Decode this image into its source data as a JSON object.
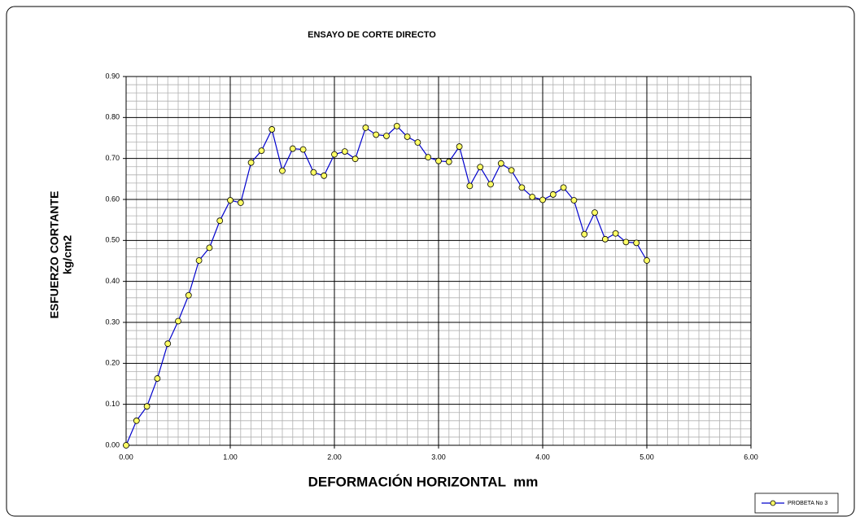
{
  "chart_data": {
    "type": "line",
    "title": "ENSAYO DE CORTE DIRECTO",
    "xlabel": "DEFORMACIÓN HORIZONTAL  mm",
    "ylabel": [
      "ESFUERZO CORTANTE",
      "kg/cm2"
    ],
    "x": [
      0,
      0.1,
      0.2,
      0.3,
      0.4,
      0.5,
      0.6,
      0.7,
      0.8,
      0.9,
      1.0,
      1.1,
      1.2,
      1.3,
      1.4,
      1.5,
      1.6,
      1.7,
      1.8,
      1.9,
      2.0,
      2.1,
      2.2,
      2.3,
      2.4,
      2.5,
      2.6,
      2.7,
      2.8,
      2.9,
      3.0,
      3.1,
      3.2,
      3.3,
      3.4,
      3.5,
      3.6,
      3.7,
      3.8,
      3.9,
      4.0,
      4.1,
      4.2,
      4.3,
      4.4,
      4.5,
      4.6,
      4.7,
      4.8,
      4.9,
      5.0
    ],
    "series": [
      {
        "name": "PROBETA No 3",
        "color": "#0000cc",
        "marker_color": "#ffff66",
        "values": [
          0,
          0.06,
          0.095,
          0.163,
          0.248,
          0.303,
          0.366,
          0.451,
          0.482,
          0.548,
          0.598,
          0.592,
          0.69,
          0.719,
          0.771,
          0.67,
          0.724,
          0.722,
          0.666,
          0.658,
          0.71,
          0.717,
          0.699,
          0.775,
          0.758,
          0.755,
          0.779,
          0.753,
          0.739,
          0.703,
          0.694,
          0.692,
          0.729,
          0.633,
          0.679,
          0.637,
          0.688,
          0.671,
          0.629,
          0.606,
          0.599,
          0.612,
          0.629,
          0.598,
          0.515,
          0.568,
          0.503,
          0.517,
          0.496,
          0.494,
          0.451
        ]
      }
    ],
    "xlim": [
      0,
      6
    ],
    "ylim": [
      0,
      0.9
    ],
    "xticks": [
      {
        "value": 0,
        "label": "0.00"
      },
      {
        "value": 1,
        "label": "1.00"
      },
      {
        "value": 2,
        "label": "2.00"
      },
      {
        "value": 3,
        "label": "3.00"
      },
      {
        "value": 4,
        "label": "4.00"
      },
      {
        "value": 5,
        "label": "5.00"
      },
      {
        "value": 6,
        "label": "6.00"
      }
    ],
    "yticks": [
      {
        "value": 0,
        "label": "0.00"
      },
      {
        "value": 0.1,
        "label": "0.10"
      },
      {
        "value": 0.2,
        "label": "0.20"
      },
      {
        "value": 0.3,
        "label": "0.30"
      },
      {
        "value": 0.4,
        "label": "0.40"
      },
      {
        "value": 0.5,
        "label": "0.50"
      },
      {
        "value": 0.6,
        "label": "0.60"
      },
      {
        "value": 0.7,
        "label": "0.70"
      },
      {
        "value": 0.8,
        "label": "0.80"
      },
      {
        "value": 0.9,
        "label": "0.90"
      }
    ],
    "grid": true,
    "minor_grid": {
      "x": 10,
      "y": 5
    },
    "legend": "lower right"
  }
}
